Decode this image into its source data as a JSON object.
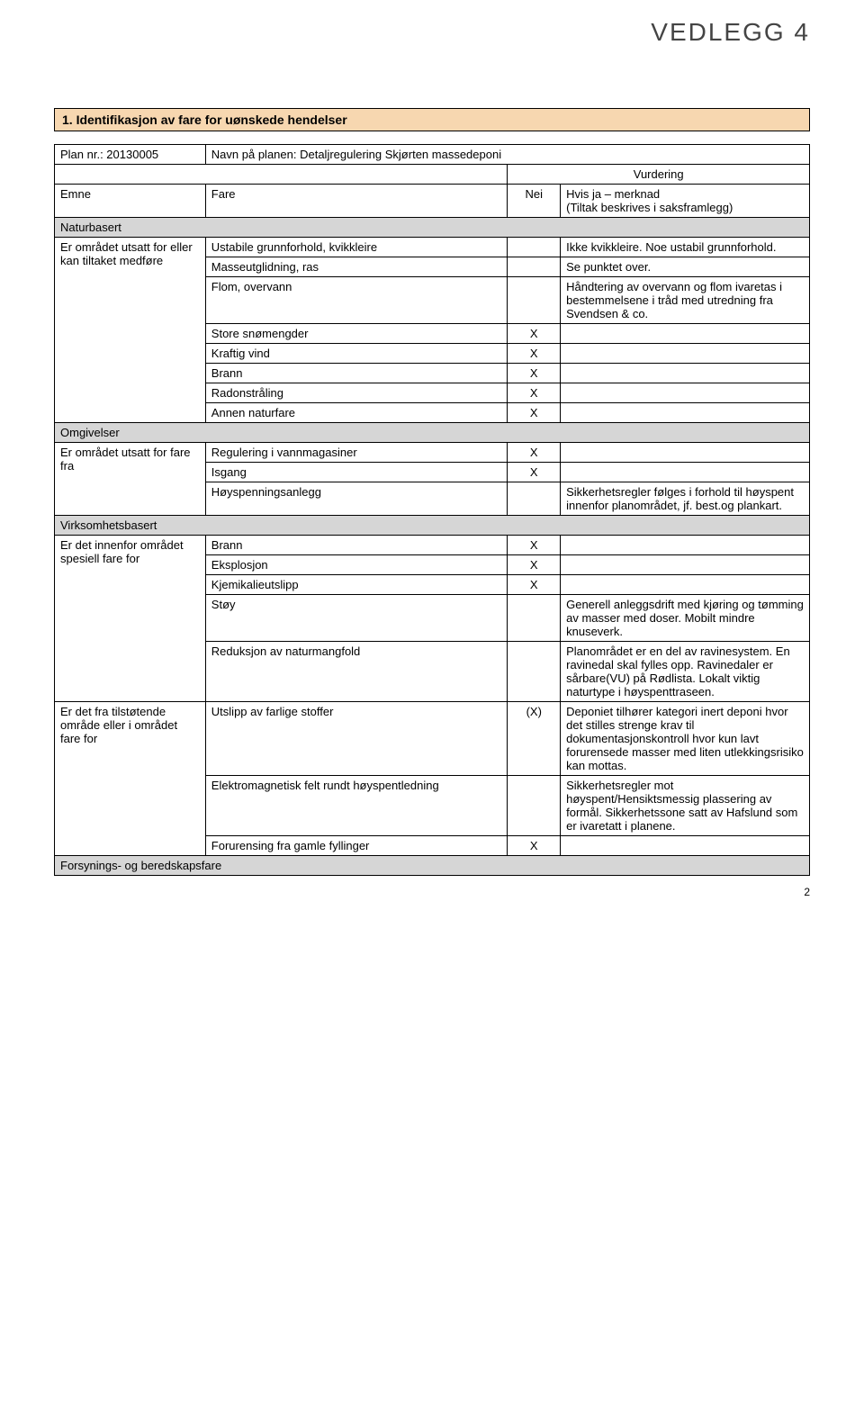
{
  "header": {
    "attachment_label": "VEDLEGG 4"
  },
  "section_title": "1. Identifikasjon av fare for uønskede hendelser",
  "plan_row": {
    "plan_nr_label": "Plan nr.: 20130005",
    "plan_name": "Navn på planen: Detaljregulering Skjørten massedeponi"
  },
  "col_headers": {
    "emne": "Emne",
    "fare": "Fare",
    "nei": "Nei",
    "ja": "Hvis ja – merknad\n(Tiltak beskrives i saksframlegg)",
    "vurdering": "Vurdering"
  },
  "groups": [
    {
      "group_label": "Naturbasert",
      "category_label": "Er området utsatt for eller kan tiltaket medføre",
      "rows": [
        {
          "fare": "Ustabile grunnforhold, kvikkleire",
          "nei": "",
          "ja": "Ikke kvikkleire. Noe ustabil grunnforhold."
        },
        {
          "fare": "Masseutglidning, ras",
          "nei": "",
          "ja": "Se punktet over."
        },
        {
          "fare": "Flom, overvann",
          "nei": "",
          "ja": "Håndtering av overvann og flom ivaretas i bestemmelsene i tråd med utredning fra Svendsen & co."
        },
        {
          "fare": "Store snømengder",
          "nei": "X",
          "ja": ""
        },
        {
          "fare": "Kraftig vind",
          "nei": "X",
          "ja": ""
        },
        {
          "fare": "Brann",
          "nei": "X",
          "ja": ""
        },
        {
          "fare": "Radonstråling",
          "nei": "X",
          "ja": ""
        },
        {
          "fare": "Annen naturfare",
          "nei": "X",
          "ja": ""
        }
      ]
    },
    {
      "group_label": "Omgivelser",
      "category_label": "Er området utsatt for fare fra",
      "rows": [
        {
          "fare": "Regulering i vannmagasiner",
          "nei": "X",
          "ja": ""
        },
        {
          "fare": "Isgang",
          "nei": "X",
          "ja": ""
        },
        {
          "fare": "Høyspenningsanlegg",
          "nei": "",
          "ja": "Sikkerhetsregler følges i forhold til høyspent innenfor planområdet, jf. best.og plankart."
        }
      ]
    },
    {
      "group_label": "Virksomhetsbasert",
      "category_label": "Er det innenfor området spesiell fare for",
      "rows": [
        {
          "fare": "Brann",
          "nei": "X",
          "ja": ""
        },
        {
          "fare": "Eksplosjon",
          "nei": "X",
          "ja": ""
        },
        {
          "fare": "Kjemikalieutslipp",
          "nei": "X",
          "ja": ""
        },
        {
          "fare": "Støy",
          "nei": "",
          "ja": "Generell anleggsdrift med kjøring og tømming av masser med doser. Mobilt mindre knuseverk."
        },
        {
          "fare": "Reduksjon av naturmangfold",
          "nei": "",
          "ja": "Planområdet er en del av ravinesystem. En ravinedal skal fylles opp. Ravinedaler er sårbare(VU) på Rødlista. Lokalt viktig naturtype i høyspenttraseen."
        }
      ],
      "category2_label": "Er det fra tilstøtende område eller i området fare for",
      "rows2": [
        {
          "fare": "Utslipp av farlige stoffer",
          "nei": "(X)",
          "ja": "Deponiet tilhører kategori inert deponi hvor det stilles strenge krav til dokumentasjonskontroll hvor kun lavt forurensede masser med liten utlekkingsrisiko kan mottas."
        },
        {
          "fare": "Elektromagnetisk felt rundt høyspentledning",
          "nei": "",
          "ja": "Sikkerhetsregler mot høyspent/Hensiktsmessig plassering av formål. Sikkerhetssone satt av Hafslund som er ivaretatt i planene."
        },
        {
          "fare": "Forurensing fra gamle fyllinger",
          "nei": "X",
          "ja": ""
        }
      ]
    },
    {
      "group_label": "Forsynings- og beredskapsfare",
      "category_label": "",
      "rows": []
    }
  ],
  "page_number": "2"
}
